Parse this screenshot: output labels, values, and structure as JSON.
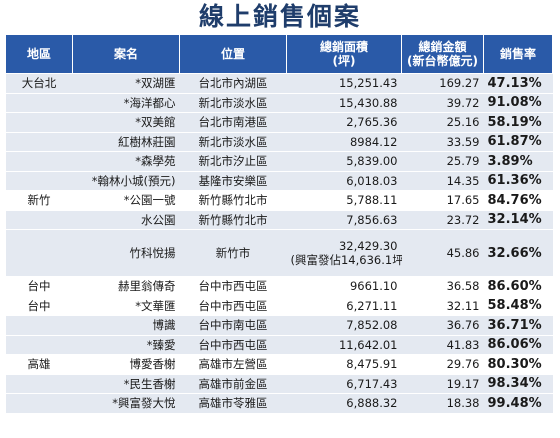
{
  "title": "線上銷售個案",
  "headers": {
    "region": "地區",
    "project": "案名",
    "location": "位置",
    "area": [
      "總銷面積",
      "(坪)"
    ],
    "amount": [
      "總銷金額",
      "(新台幣億元)"
    ],
    "rate": "銷售率"
  },
  "rows": [
    {
      "region": "大台北",
      "project": "*双湖匯",
      "location": "台北市內湖區",
      "area": "15,251.43",
      "amount": "169.27",
      "rate": "47.13%"
    },
    {
      "region": "",
      "project": "*海洋都心",
      "location": "新北市淡水區",
      "area": "15,430.88",
      "amount": "39.72",
      "rate": "91.08%"
    },
    {
      "region": "",
      "project": "*双美館",
      "location": "台北市南港區",
      "area": "2,765.36",
      "amount": "25.16",
      "rate": "58.19%"
    },
    {
      "region": "",
      "project": "紅樹林莊園",
      "location": "新北市淡水區",
      "area": "8984.12",
      "amount": "33.59",
      "rate": "61.87%"
    },
    {
      "region": "",
      "project": "*森學苑",
      "location": "新北市汐止區",
      "area": "5,839.00",
      "amount": "25.79",
      "rate": "3.89%"
    },
    {
      "region": "",
      "project": "*翰林小城(預元)",
      "location": "基隆市安樂區",
      "area": "6,018.03",
      "amount": "14.35",
      "rate": "61.36%"
    },
    {
      "region": "新竹",
      "project": "*公園一號",
      "location": "新竹縣竹北市",
      "area": "5,788.11",
      "amount": "17.65",
      "rate": "84.76%"
    },
    {
      "region": "",
      "project": "水公園",
      "location": "新竹縣竹北市",
      "area": "7,856.63",
      "amount": "23.72",
      "rate": "32.14%"
    },
    {
      "region": "",
      "project": "竹科悅揚",
      "location": "新竹市",
      "area": "32,429.30",
      "area_note": "(興富發佔14,636.1坪)",
      "amount": "45.86",
      "rate": "32.66%"
    },
    {
      "region": "台中",
      "project": "赫里翁傳奇",
      "location": "台中市西屯區",
      "area": "9661.10",
      "amount": "36.58",
      "rate": "86.60%"
    },
    {
      "region": "台中",
      "project": "*文華匯",
      "location": "台中市西屯區",
      "area": "6,271.11",
      "amount": "32.11",
      "rate": "58.48%"
    },
    {
      "region": "",
      "project": "博識",
      "location": "台中市南屯區",
      "area": "7,852.08",
      "amount": "36.76",
      "rate": "36.71%"
    },
    {
      "region": "",
      "project": "*臻愛",
      "location": "台中市西屯區",
      "area": "11,642.01",
      "amount": "41.83",
      "rate": "86.06%"
    },
    {
      "region": "高雄",
      "project": "博愛香榭",
      "location": "高雄市左營區",
      "area": "8,475.91",
      "amount": "29.76",
      "rate": "80.30%"
    },
    {
      "region": "",
      "project": "*民生香榭",
      "location": "高雄市前金區",
      "area": "6,717.43",
      "amount": "19.17",
      "rate": "98.34%"
    },
    {
      "region": "",
      "project": "*興富發大悅",
      "location": "高雄市苓雅區",
      "area": "6,888.32",
      "amount": "18.38",
      "rate": "99.48%"
    }
  ]
}
